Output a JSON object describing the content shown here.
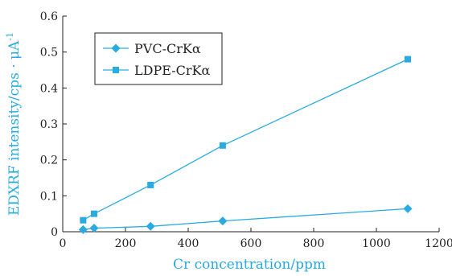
{
  "colors": {
    "series": "#29abe2",
    "axis": "#222222",
    "axis_title": "#29abe2"
  },
  "chart_data": {
    "type": "line",
    "title": "",
    "xlabel": "Cr concentration/ppm",
    "ylabel_main": "EDXRF intensity/cps · μA",
    "ylabel_sup": "-1",
    "xlim": [
      0,
      1200
    ],
    "ylim": [
      0,
      0.6
    ],
    "x_ticks": [
      0,
      200,
      400,
      600,
      800,
      1000,
      1200
    ],
    "y_ticks": [
      0,
      0.1,
      0.2,
      0.3,
      0.4,
      0.5,
      0.6
    ],
    "grid": false,
    "legend_position": "top-left",
    "series": [
      {
        "name": "PVC-CrKα",
        "marker": "diamond",
        "x": [
          65,
          100,
          280,
          510,
          1100
        ],
        "y": [
          0.006,
          0.01,
          0.015,
          0.03,
          0.064
        ]
      },
      {
        "name": "LDPE-CrKα",
        "marker": "square",
        "x": [
          65,
          100,
          280,
          510,
          1100
        ],
        "y": [
          0.032,
          0.05,
          0.13,
          0.24,
          0.48
        ]
      }
    ]
  }
}
